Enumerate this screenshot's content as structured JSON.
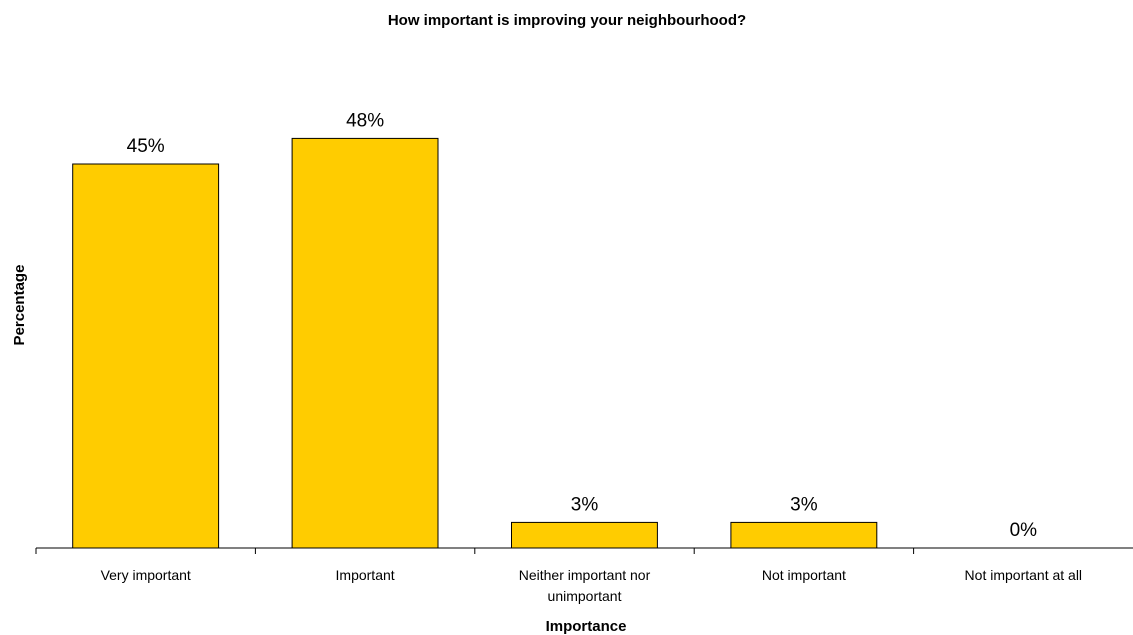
{
  "chart_data": {
    "type": "bar",
    "title": "How important is improving your neighbourhood?",
    "xlabel": "Importance",
    "ylabel": "Percentage",
    "categories": [
      [
        "Very important"
      ],
      [
        "Important"
      ],
      [
        "Neither important nor",
        "unimportant"
      ],
      [
        "Not important"
      ],
      [
        "Not important at all"
      ]
    ],
    "values": [
      45,
      48,
      3,
      3,
      0
    ],
    "data_labels": [
      "45%",
      "48%",
      "3%",
      "3%",
      "0%"
    ],
    "ylim": [
      0,
      60
    ],
    "grid": false,
    "legend": "none",
    "colors": {
      "bar_fill": "#FFCC00",
      "bar_stroke": "#000000",
      "axis": "#000000",
      "background": "#FFFFFF"
    }
  }
}
